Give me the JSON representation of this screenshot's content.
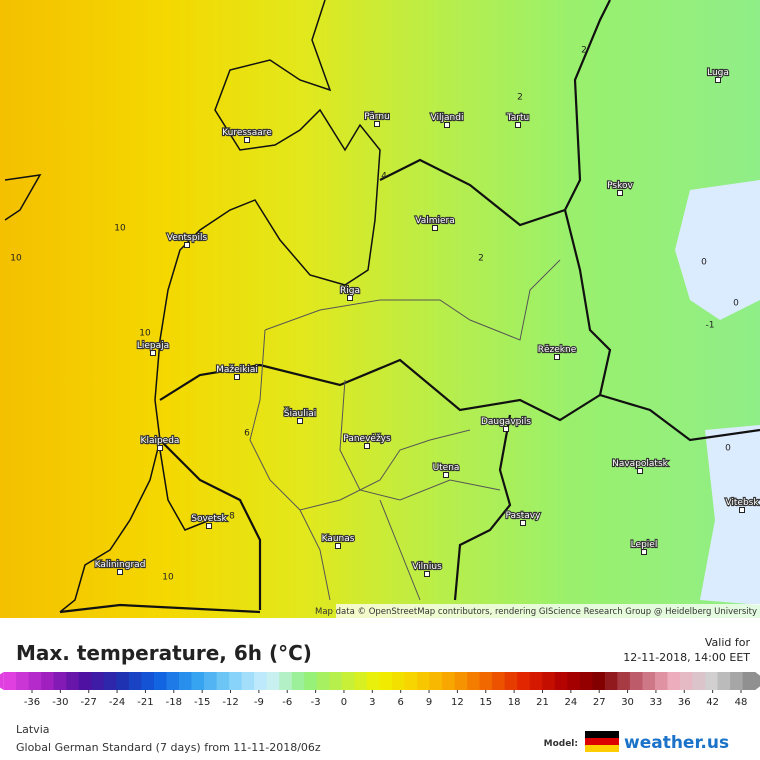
{
  "map": {
    "cities": [
      "Kuressaare",
      "Pärnu",
      "Viljandi",
      "Tartu",
      "Luga",
      "Pskov",
      "Ventspils",
      "Valmiera",
      "Riga",
      "Liepaja",
      "Rēzekne",
      "Mažeikiai",
      "Klaipeda",
      "Šiauliai",
      "Panevėžys",
      "Daugavpils",
      "Navapolatsk",
      "Vitebsk",
      "Utena",
      "Pastavy",
      "Sovetsk",
      "Kaunas",
      "Lepiel",
      "Kaliningrad",
      "Vilnius"
    ],
    "contour_labels": [
      "10",
      "10",
      "10",
      "10",
      "2",
      "2",
      "2",
      "4",
      "0",
      "0",
      "0",
      "8",
      "6",
      "-1"
    ],
    "attribution": "Map data © OpenStreetMap contributors, rendering GIScience Research Group @ Heidelberg University"
  },
  "header": {
    "title": "Max. temperature, 6h (°C)",
    "valid_label": "Valid for",
    "valid_time": "12-11-2018, 14:00 EET"
  },
  "legend": {
    "ticks": [
      -36,
      -30,
      -27,
      -24,
      -21,
      -18,
      -15,
      -12,
      -9,
      -6,
      -3,
      0,
      3,
      6,
      9,
      12,
      15,
      18,
      21,
      24,
      27,
      30,
      33,
      36,
      42,
      48
    ]
  },
  "footer": {
    "region": "Latvia",
    "model_run": "Global German Standard (7 days) from 11-11-2018/06z",
    "model_label": "Model:",
    "brand": "weather.us"
  }
}
